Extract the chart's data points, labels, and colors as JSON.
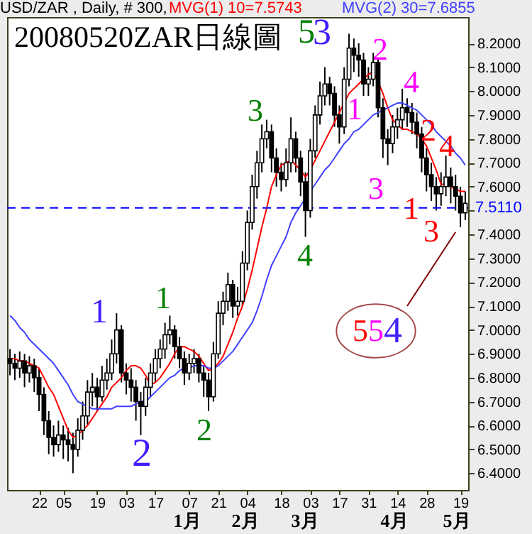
{
  "chart_data": {
    "type": "candlestick",
    "title": "20080520ZAR日線圖",
    "subtitle": "USD/ZAR , Daily, # 300, ",
    "categories": [
      null,
      null,
      null,
      null,
      null,
      null,
      "22",
      null,
      null,
      null,
      null,
      "05",
      null,
      null,
      null,
      null,
      null,
      null,
      "19",
      null,
      null,
      null,
      null,
      null,
      "03",
      null,
      null,
      null,
      null,
      null,
      "17",
      null,
      null,
      null,
      null,
      null,
      null,
      "07",
      null,
      null,
      null,
      null,
      null,
      "21",
      null,
      null,
      null,
      null,
      null,
      "04",
      null,
      null,
      null,
      null,
      null,
      null,
      "18",
      null,
      null,
      null,
      null,
      null,
      "03",
      null,
      null,
      null,
      null,
      null,
      "17",
      null,
      null,
      null,
      null,
      null,
      "31",
      null,
      null,
      null,
      null,
      null,
      "14",
      null,
      null,
      null,
      null,
      null,
      "28",
      null,
      null,
      null,
      null,
      null,
      null,
      "19",
      null
    ],
    "ohlc": [
      [
        6.88,
        6.92,
        6.81,
        6.86
      ],
      [
        6.86,
        6.9,
        6.79,
        6.84
      ],
      [
        6.84,
        6.91,
        6.8,
        6.87
      ],
      [
        6.87,
        6.9,
        6.76,
        6.82
      ],
      [
        6.82,
        6.89,
        6.78,
        6.85
      ],
      [
        6.85,
        6.88,
        6.74,
        6.8
      ],
      [
        6.8,
        6.84,
        6.66,
        6.73
      ],
      [
        6.73,
        6.76,
        6.56,
        6.62
      ],
      [
        6.62,
        6.66,
        6.48,
        6.55
      ],
      [
        6.55,
        6.6,
        6.47,
        6.52
      ],
      [
        6.52,
        6.62,
        6.49,
        6.56
      ],
      [
        6.56,
        6.6,
        6.46,
        6.54
      ],
      [
        6.54,
        6.59,
        6.45,
        6.52
      ],
      [
        6.52,
        6.57,
        6.4,
        6.5
      ],
      [
        6.5,
        6.63,
        6.47,
        6.58
      ],
      [
        6.58,
        6.7,
        6.54,
        6.64
      ],
      [
        6.64,
        6.79,
        6.6,
        6.74
      ],
      [
        6.74,
        6.82,
        6.68,
        6.76
      ],
      [
        6.76,
        6.8,
        6.66,
        6.72
      ],
      [
        6.72,
        6.85,
        6.7,
        6.79
      ],
      [
        6.79,
        6.88,
        6.75,
        6.82
      ],
      [
        6.82,
        6.96,
        6.79,
        6.9
      ],
      [
        6.9,
        7.07,
        6.86,
        7.0
      ],
      [
        7.0,
        7.02,
        6.78,
        6.82
      ],
      [
        6.82,
        6.86,
        6.73,
        6.79
      ],
      [
        6.79,
        6.84,
        6.7,
        6.76
      ],
      [
        6.76,
        6.79,
        6.62,
        6.7
      ],
      [
        6.7,
        6.74,
        6.56,
        6.68
      ],
      [
        6.68,
        6.8,
        6.64,
        6.76
      ],
      [
        6.76,
        6.86,
        6.72,
        6.82
      ],
      [
        6.82,
        6.92,
        6.78,
        6.88
      ],
      [
        6.88,
        6.96,
        6.84,
        6.92
      ],
      [
        6.92,
        7.03,
        6.88,
        6.98
      ],
      [
        6.98,
        7.06,
        6.94,
        7.0
      ],
      [
        7.0,
        7.02,
        6.88,
        6.93
      ],
      [
        6.93,
        6.97,
        6.84,
        6.88
      ],
      [
        6.88,
        6.91,
        6.77,
        6.82
      ],
      [
        6.82,
        6.9,
        6.79,
        6.86
      ],
      [
        6.86,
        6.92,
        6.82,
        6.88
      ],
      [
        6.88,
        6.9,
        6.78,
        6.82
      ],
      [
        6.82,
        6.85,
        6.72,
        6.79
      ],
      [
        6.79,
        6.82,
        6.66,
        6.72
      ],
      [
        6.72,
        6.95,
        6.7,
        6.9
      ],
      [
        6.9,
        7.12,
        6.88,
        7.07
      ],
      [
        7.07,
        7.16,
        7.02,
        7.12
      ],
      [
        7.12,
        7.24,
        7.08,
        7.19
      ],
      [
        7.19,
        7.21,
        7.05,
        7.1
      ],
      [
        7.1,
        7.18,
        7.06,
        7.12
      ],
      [
        7.12,
        7.33,
        7.1,
        7.28
      ],
      [
        7.28,
        7.5,
        7.25,
        7.45
      ],
      [
        7.45,
        7.65,
        7.42,
        7.6
      ],
      [
        7.6,
        7.75,
        7.55,
        7.7
      ],
      [
        7.7,
        7.86,
        7.66,
        7.8
      ],
      [
        7.8,
        7.88,
        7.76,
        7.83
      ],
      [
        7.83,
        7.86,
        7.66,
        7.72
      ],
      [
        7.72,
        7.76,
        7.6,
        7.66
      ],
      [
        7.66,
        7.7,
        7.58,
        7.63
      ],
      [
        7.63,
        7.76,
        7.6,
        7.7
      ],
      [
        7.7,
        7.89,
        7.66,
        7.8
      ],
      [
        7.8,
        7.83,
        7.66,
        7.72
      ],
      [
        7.72,
        7.75,
        7.56,
        7.62
      ],
      [
        7.62,
        7.66,
        7.39,
        7.5
      ],
      [
        7.5,
        7.8,
        7.47,
        7.75
      ],
      [
        7.75,
        7.94,
        7.72,
        7.9
      ],
      [
        7.9,
        8.04,
        7.86,
        7.98
      ],
      [
        7.98,
        8.1,
        7.94,
        8.03
      ],
      [
        8.03,
        8.06,
        7.94,
        7.99
      ],
      [
        7.99,
        8.02,
        7.85,
        7.9
      ],
      [
        7.9,
        7.94,
        7.78,
        7.85
      ],
      [
        7.85,
        8.1,
        7.82,
        8.05
      ],
      [
        8.05,
        8.24,
        8.02,
        8.18
      ],
      [
        8.18,
        8.22,
        8.08,
        8.15
      ],
      [
        8.15,
        8.2,
        8.06,
        8.13
      ],
      [
        8.13,
        8.16,
        7.98,
        8.03
      ],
      [
        8.03,
        8.1,
        7.98,
        8.05
      ],
      [
        8.05,
        8.16,
        8.02,
        8.12
      ],
      [
        8.12,
        8.14,
        7.89,
        7.93
      ],
      [
        7.93,
        7.97,
        7.72,
        7.8
      ],
      [
        7.8,
        7.84,
        7.69,
        7.78
      ],
      [
        7.78,
        7.9,
        7.74,
        7.85
      ],
      [
        7.85,
        7.93,
        7.8,
        7.88
      ],
      [
        7.88,
        8.01,
        7.84,
        7.93
      ],
      [
        7.93,
        7.97,
        7.85,
        7.91
      ],
      [
        7.91,
        7.95,
        7.82,
        7.87
      ],
      [
        7.87,
        7.91,
        7.76,
        7.82
      ],
      [
        7.82,
        7.85,
        7.66,
        7.72
      ],
      [
        7.72,
        7.76,
        7.58,
        7.65
      ],
      [
        7.65,
        7.7,
        7.54,
        7.6
      ],
      [
        7.6,
        7.64,
        7.5,
        7.57
      ],
      [
        7.57,
        7.66,
        7.52,
        7.6
      ],
      [
        7.6,
        7.73,
        7.56,
        7.64
      ],
      [
        7.64,
        7.68,
        7.53,
        7.6
      ],
      [
        7.6,
        7.65,
        7.5,
        7.56
      ],
      [
        7.56,
        7.6,
        7.43,
        7.49
      ],
      [
        7.49,
        7.58,
        7.46,
        7.53
      ]
    ],
    "series": [
      {
        "name": "MVG(1) 10=7.5743",
        "type": "line",
        "color": "#ff0000",
        "values": [
          6.88,
          6.88,
          6.87,
          6.87,
          6.86,
          6.85,
          6.84,
          6.8,
          6.76,
          6.73,
          6.68,
          6.63,
          6.58,
          6.55,
          6.56,
          6.58,
          6.6,
          6.63,
          6.66,
          6.69,
          6.72,
          6.76,
          6.78,
          6.8,
          6.83,
          6.85,
          6.85,
          6.84,
          6.81,
          6.77,
          6.78,
          6.8,
          6.83,
          6.86,
          6.9,
          6.93,
          6.93,
          6.92,
          6.91,
          6.89,
          6.86,
          6.83,
          6.84,
          6.86,
          6.89,
          6.94,
          6.99,
          7.05,
          7.1,
          7.17,
          7.25,
          7.34,
          7.43,
          7.51,
          7.6,
          7.65,
          7.69,
          7.7,
          7.71,
          7.69,
          7.67,
          7.64,
          7.67,
          7.71,
          7.75,
          7.79,
          7.83,
          7.87,
          7.91,
          7.95,
          7.99,
          8.01,
          8.03,
          8.05,
          8.07,
          8.08,
          8.04,
          7.99,
          7.93,
          7.88,
          7.86,
          7.84,
          7.84,
          7.83,
          7.82,
          7.8,
          7.77,
          7.72,
          7.67,
          7.61,
          7.61,
          7.6,
          7.59,
          7.58,
          7.58
        ]
      },
      {
        "name": "MVG(2) 30=7.6855",
        "type": "line",
        "color": "#4040ff",
        "values": [
          7.06,
          7.04,
          7.01,
          6.99,
          6.96,
          6.94,
          6.92,
          6.9,
          6.88,
          6.86,
          6.83,
          6.8,
          6.77,
          6.73,
          6.7,
          6.69,
          6.68,
          6.67,
          6.67,
          6.67,
          6.67,
          6.67,
          6.68,
          6.68,
          6.68,
          6.68,
          6.69,
          6.7,
          6.7,
          6.72,
          6.74,
          6.76,
          6.78,
          6.8,
          6.81,
          6.83,
          6.84,
          6.84,
          6.85,
          6.85,
          6.85,
          6.84,
          6.84,
          6.85,
          6.87,
          6.89,
          6.91,
          6.94,
          6.97,
          7.0,
          7.03,
          7.08,
          7.14,
          7.21,
          7.27,
          7.31,
          7.35,
          7.39,
          7.45,
          7.49,
          7.52,
          7.55,
          7.58,
          7.61,
          7.64,
          7.67,
          7.69,
          7.72,
          7.75,
          7.78,
          7.8,
          7.83,
          7.84,
          7.86,
          7.88,
          7.9,
          7.91,
          7.92,
          7.93,
          7.94,
          7.95,
          7.95,
          7.94,
          7.93,
          7.92,
          7.9,
          7.88,
          7.86,
          7.83,
          7.81,
          7.79,
          7.77,
          7.74,
          7.72,
          7.69
        ]
      },
      {
        "type": "line",
        "color": "#800000",
        "values": [
          null,
          null,
          null,
          null,
          null,
          null,
          null,
          null,
          null,
          null,
          null,
          null,
          null,
          null,
          null,
          null,
          null,
          null,
          null,
          null,
          null,
          null,
          null,
          null,
          null,
          null,
          null,
          null,
          null,
          null,
          null,
          null,
          null,
          null,
          null,
          null,
          null,
          null,
          null,
          null,
          null,
          null,
          null,
          null,
          null,
          null,
          null,
          null,
          null,
          null,
          null,
          null,
          null,
          null,
          null,
          null,
          null,
          null,
          null,
          null,
          null,
          null,
          null,
          null,
          null,
          null,
          null,
          null,
          null,
          null,
          null,
          null,
          null,
          null,
          null,
          null,
          null,
          null,
          null,
          null,
          null,
          null,
          7.1,
          null,
          null,
          null,
          null,
          null,
          null,
          null,
          null,
          null,
          7.41,
          null,
          null
        ]
      }
    ],
    "ylim": [
      6.33,
      8.31
    ],
    "yticks": [
      {
        "value": 6.4,
        "label": "6.4000"
      },
      {
        "value": 6.5,
        "label": "6.5000"
      },
      {
        "value": 6.6,
        "label": "6.6000"
      },
      {
        "value": 6.7,
        "label": "6.7000"
      },
      {
        "value": 6.8,
        "label": "6.8000"
      },
      {
        "value": 6.9,
        "label": "6.9000"
      },
      {
        "value": 7.0,
        "label": "7.0000"
      },
      {
        "value": 7.1,
        "label": "7.1000"
      },
      {
        "value": 7.2,
        "label": "7.2000"
      },
      {
        "value": 7.3,
        "label": "7.3000"
      },
      {
        "value": 7.4,
        "label": "7.4000"
      },
      {
        "value": 7.5,
        "label": null
      },
      {
        "value": 7.6,
        "label": "7.6000"
      },
      {
        "value": 7.7,
        "label": "7.7000"
      },
      {
        "value": 7.8,
        "label": "7.8000"
      },
      {
        "value": 7.9,
        "label": "7.9000"
      },
      {
        "value": 8.0,
        "label": "8.0000"
      },
      {
        "value": 8.1,
        "label": "8.1000"
      },
      {
        "value": 8.2,
        "label": "8.2000"
      }
    ],
    "ref_lines": [
      {
        "axis": "y",
        "value": 7.511,
        "label": "7.5110",
        "color": "#0000ff",
        "line_style": "dashed"
      }
    ],
    "annotations": [
      "1",
      "2",
      "1",
      "2",
      "3",
      "4",
      "5",
      "3",
      "1",
      "2",
      "3",
      "4",
      "2",
      "4",
      "1",
      "3",
      "5",
      "5",
      "4",
      "1月",
      "2月",
      "3月",
      "4月",
      "5月"
    ],
    "legend": "top",
    "grid": false
  }
}
